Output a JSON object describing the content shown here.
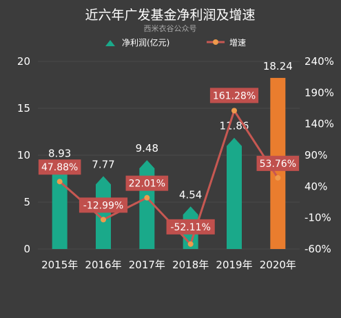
{
  "chart_data": {
    "type": "bar",
    "title": "近六年广发基金净利润及增速",
    "subtitle": "西米衣谷公众号",
    "categories": [
      "2015年",
      "2016年",
      "2017年",
      "2018年",
      "2019年",
      "2020年"
    ],
    "series": [
      {
        "name": "净利润(亿元)",
        "type": "bar",
        "axis": "left",
        "values": [
          8.93,
          7.77,
          9.48,
          4.54,
          11.86,
          18.24
        ],
        "labels": [
          "8.93",
          "7.77",
          "9.48",
          "4.54",
          "11.86",
          "18.24"
        ]
      },
      {
        "name": "增速",
        "type": "line",
        "axis": "right",
        "values": [
          47.88,
          -12.99,
          22.01,
          -52.11,
          161.28,
          53.76
        ],
        "labels": [
          "47.88%",
          "-12.99%",
          "22.01%",
          "-52.11%",
          "161.28%",
          "53.76%"
        ]
      }
    ],
    "left_axis": {
      "ylim": [
        0,
        20
      ],
      "ticks": [
        "0",
        "5",
        "10",
        "15",
        "20"
      ]
    },
    "right_axis": {
      "ylim": [
        -60,
        240
      ],
      "ticks": [
        "-60%",
        "-10%",
        "40%",
        "90%",
        "140%",
        "190%",
        "240%"
      ]
    },
    "legend_position": "top",
    "grid": true,
    "colors": {
      "bar": "#1aa98a",
      "bar_highlight": "#ea7d2e",
      "line": "#c75852",
      "marker": "#ef9a4c",
      "label_box": "#c0504d",
      "grid": "#4a4a4a",
      "background": "#3c3c3c"
    }
  }
}
